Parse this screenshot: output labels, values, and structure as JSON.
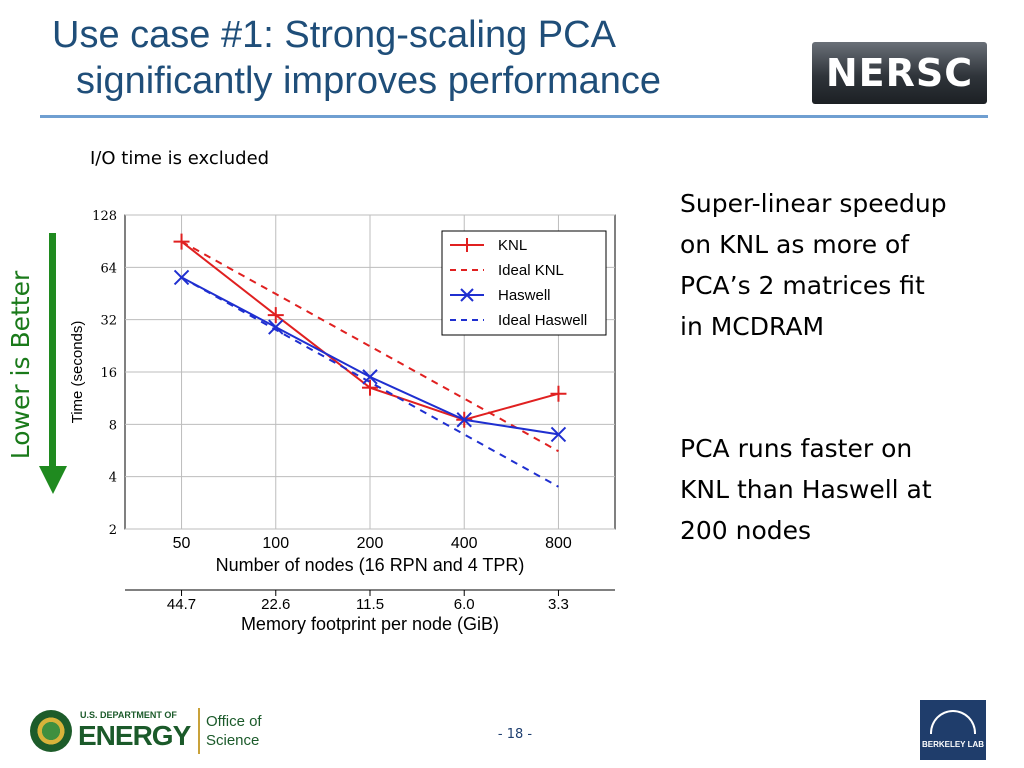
{
  "slide": {
    "title_line1": "Use case #1: Strong-scaling PCA",
    "title_line2": "significantly improves performance",
    "note": "I/O time is excluded",
    "side_text_1": "Super-linear speedup on KNL as more of PCA’s 2 matrices fit in MCDRAM",
    "side_text_2": "PCA runs faster on KNL than Haswell at 200 nodes",
    "arrow_label": "Lower is Better",
    "page_number": "- 18 -"
  },
  "logos": {
    "nersc": "NERSC",
    "energy_dept": "U.S. DEPARTMENT OF",
    "energy_word": "ENERGY",
    "office_line1": "Office of",
    "office_line2": "Science",
    "berkeley": "BERKELEY LAB"
  },
  "colors": {
    "title": "#1f4e79",
    "knl": "#e02020",
    "haswell": "#1f2fd0",
    "arrow": "#1f8a1f"
  },
  "chart_data": {
    "type": "line",
    "title": "",
    "xlabel": "Number of nodes (16 RPN and 4 TPR)",
    "ylabel": "Time (seconds)",
    "x_scale": "log2",
    "y_scale": "log2",
    "categories": [
      "50",
      "100",
      "200",
      "400",
      "800"
    ],
    "x": [
      50,
      100,
      200,
      400,
      800
    ],
    "y_ticks": [
      2,
      4,
      8,
      16,
      32,
      64,
      128
    ],
    "y_tick_labels": [
      "2",
      "4",
      "8",
      "16",
      "32",
      "64",
      "128"
    ],
    "ylim": [
      2,
      128
    ],
    "grid": true,
    "legend_position": "top-right",
    "secondary_axis": {
      "label": "Memory footprint per node (GiB)",
      "tick_labels": [
        "44.7",
        "22.6",
        "11.5",
        "6.0",
        "3.3"
      ]
    },
    "series": [
      {
        "name": "KNL",
        "style": "solid",
        "marker": "plus",
        "color": "#e02020",
        "values": [
          90,
          34,
          13,
          8.5,
          12
        ]
      },
      {
        "name": "Ideal KNL",
        "style": "dashed",
        "marker": "none",
        "color": "#e02020",
        "values": [
          90,
          45,
          22.5,
          11.25,
          5.6
        ]
      },
      {
        "name": "Haswell",
        "style": "solid",
        "marker": "x",
        "color": "#1f2fd0",
        "values": [
          56,
          29,
          15,
          8.5,
          7
        ]
      },
      {
        "name": "Ideal Haswell",
        "style": "dashed",
        "marker": "none",
        "color": "#1f2fd0",
        "values": [
          56,
          28,
          14,
          7,
          3.5
        ]
      }
    ]
  }
}
